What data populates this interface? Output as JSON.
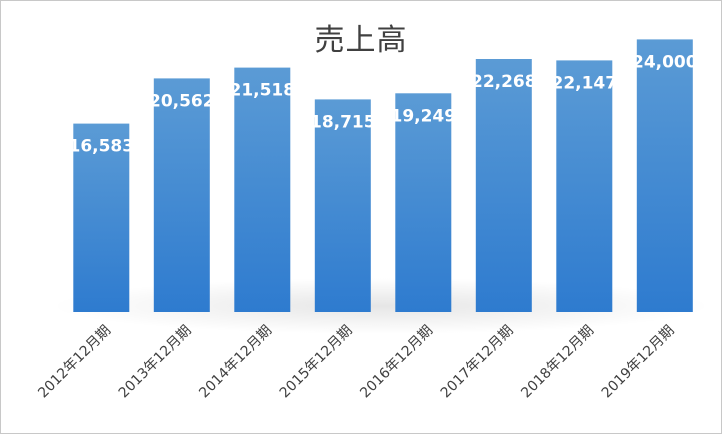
{
  "chart_data": {
    "type": "bar",
    "title": "売上高",
    "categories": [
      "2012年12月期",
      "2013年12月期",
      "2014年12月期",
      "2015年12月期",
      "2016年12月期",
      "2017年12月期",
      "2018年12月期",
      "2019年12月期"
    ],
    "values": [
      16583,
      20562,
      21518,
      18715,
      19249,
      22268,
      22147,
      24000
    ],
    "value_labels": [
      "16,583",
      "20,562",
      "21,518",
      "18,715",
      "19,249",
      "22,268",
      "22,147",
      "24,000"
    ],
    "ylim": [
      0,
      25000
    ],
    "grid": false,
    "legend": "none",
    "colors": {
      "bar_top": "#5B9BD5",
      "bar_bottom": "#2E7BCF",
      "label": "#FFFFFF",
      "text": "#404040"
    }
  }
}
